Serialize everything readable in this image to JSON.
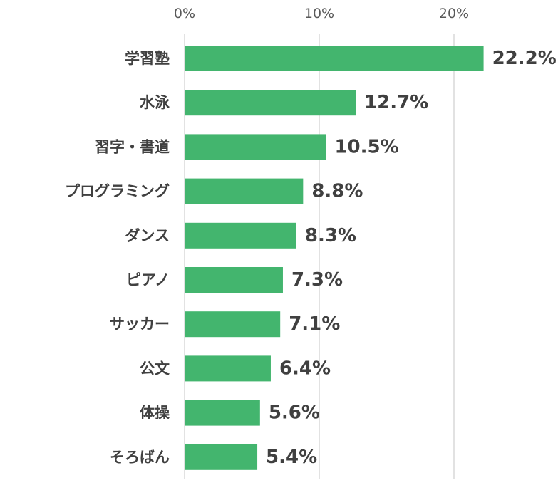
{
  "chart_data": {
    "type": "bar",
    "orientation": "horizontal",
    "categories": [
      "学習塾",
      "水泳",
      "習字・書道",
      "プログラミング",
      "ダンス",
      "ピアノ",
      "サッカー",
      "公文",
      "体操",
      "そろばん"
    ],
    "values": [
      22.2,
      12.7,
      10.5,
      8.8,
      8.3,
      7.3,
      7.1,
      6.4,
      5.6,
      5.4
    ],
    "value_labels": [
      "22.2%",
      "12.7%",
      "10.5%",
      "8.8%",
      "8.3%",
      "7.3%",
      "7.1%",
      "6.4%",
      "5.6%",
      "5.4%"
    ],
    "xlim": [
      0,
      27.5
    ],
    "x_ticks": [
      0,
      10,
      20
    ],
    "x_tick_labels": [
      "0%",
      "10%",
      "20%"
    ],
    "x_axis_position": "top",
    "grid": true,
    "bar_color": "#43b56e",
    "title": "",
    "xlabel": "",
    "ylabel": ""
  }
}
